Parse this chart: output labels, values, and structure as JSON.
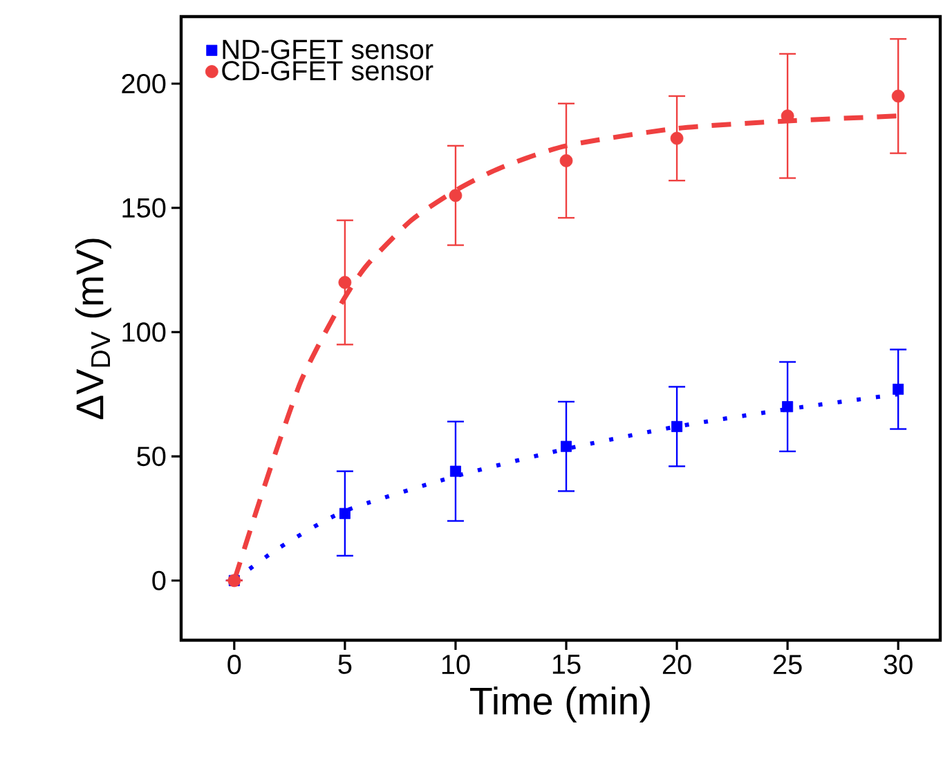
{
  "chart_data": {
    "type": "scatter",
    "xlabel": "Time (min)",
    "ylabel": "ΔV$_{DV}$ (mV)",
    "xlim": [
      -2.4,
      31.9
    ],
    "ylim": [
      -24,
      227
    ],
    "xticks": [
      0,
      5,
      10,
      15,
      20,
      25,
      30
    ],
    "yticks": [
      0,
      50,
      100,
      150,
      200
    ],
    "grid": false,
    "legend": "top left",
    "series": [
      {
        "name": "ND-GFET sensor",
        "color": "#0000ff",
        "marker": "square",
        "x": [
          0,
          5,
          10,
          15,
          20,
          25,
          30
        ],
        "values": [
          0,
          27,
          44,
          54,
          62,
          70,
          77
        ],
        "errors": [
          0,
          17,
          20,
          18,
          16,
          18,
          16
        ]
      },
      {
        "name": "CD-GFET sensor",
        "color": "#ef4040",
        "marker": "circle",
        "x": [
          0,
          5,
          10,
          15,
          20,
          25,
          30
        ],
        "values": [
          0,
          120,
          155,
          169,
          178,
          187,
          195
        ],
        "errors": [
          0,
          25,
          20,
          23,
          17,
          25,
          23
        ]
      },
      {
        "type": "line",
        "color": "#0000ff",
        "marker": "none",
        "line_style": "dotted",
        "x": [
          0,
          2,
          5,
          10,
          15,
          20,
          25,
          30
        ],
        "values": [
          0,
          13,
          28,
          42,
          53,
          62,
          69,
          75
        ]
      },
      {
        "type": "line",
        "color": "#ef4040",
        "marker": "none",
        "line_style": "dashed",
        "x": [
          0,
          1,
          2,
          3,
          4,
          5,
          6,
          8,
          10,
          12,
          15,
          20,
          25,
          30
        ],
        "values": [
          0,
          28,
          55,
          80,
          98,
          114,
          127,
          145,
          157,
          166,
          175,
          182,
          185,
          187
        ]
      }
    ]
  }
}
